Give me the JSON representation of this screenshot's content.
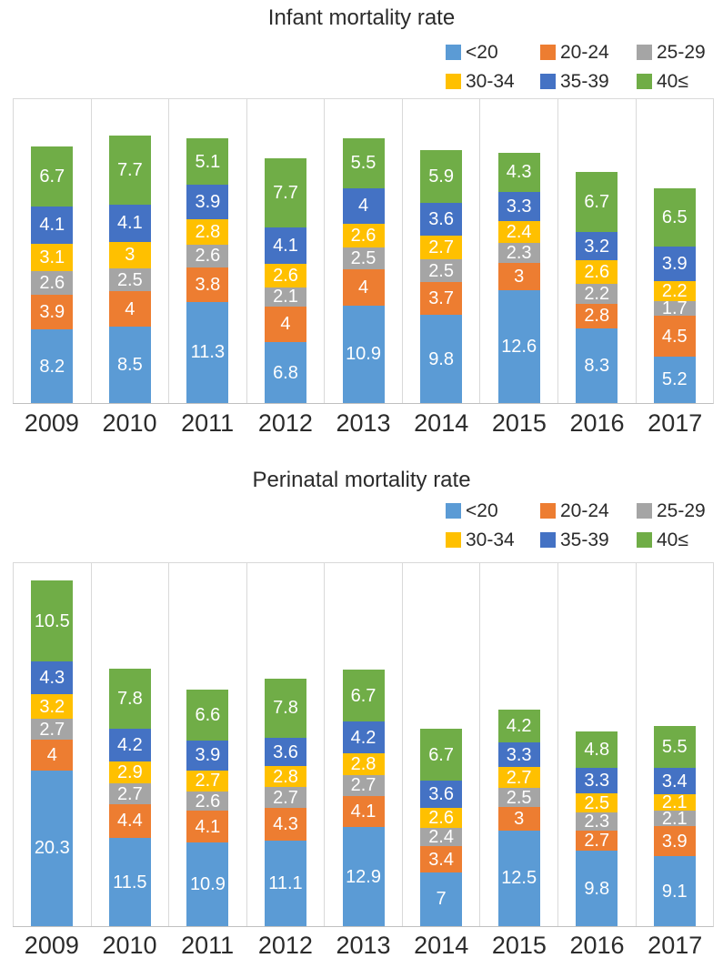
{
  "figure": {
    "background": "#ffffff",
    "text_color": "#2b2b2b",
    "gridline_color": "#d9d9d9",
    "axis_line_color": "#c0c0c0",
    "label_color_inside_bars": "#ffffff"
  },
  "chart_data": [
    {
      "type": "bar",
      "variant": "stacked-vertical",
      "title": "Infant mortality rate",
      "xlabel": "",
      "ylabel": "",
      "ylim": [
        0,
        33.9
      ],
      "grid": "vertical-category-separators",
      "legend_position": "top-right-two-rows",
      "categories": [
        "2009",
        "2010",
        "2011",
        "2012",
        "2013",
        "2014",
        "2015",
        "2016",
        "2017"
      ],
      "series": [
        {
          "name": "<20",
          "color": "#5B9BD5",
          "values": [
            8.2,
            8.5,
            11.3,
            6.8,
            10.9,
            9.8,
            12.6,
            8.3,
            5.2
          ]
        },
        {
          "name": "20-24",
          "color": "#ED7D31",
          "values": [
            3.9,
            4,
            3.8,
            4,
            4,
            3.7,
            3,
            2.8,
            4.5
          ]
        },
        {
          "name": "25-29",
          "color": "#A5A5A5",
          "values": [
            2.6,
            2.5,
            2.6,
            2.1,
            2.5,
            2.5,
            2.3,
            2.2,
            1.7
          ]
        },
        {
          "name": "30-34",
          "color": "#FFC000",
          "values": [
            3.1,
            3,
            2.8,
            2.6,
            2.6,
            2.7,
            2.4,
            2.6,
            2.2
          ]
        },
        {
          "name": "35-39",
          "color": "#4472C4",
          "values": [
            4.1,
            4.1,
            3.9,
            4.1,
            4,
            3.6,
            3.3,
            3.2,
            3.9
          ]
        },
        {
          "name": "40≤",
          "color": "#70AD47",
          "values": [
            6.7,
            7.7,
            5.1,
            7.7,
            5.5,
            5.9,
            4.3,
            6.7,
            6.5
          ]
        }
      ]
    },
    {
      "type": "bar",
      "variant": "stacked-vertical",
      "title": "Perinatal mortality rate",
      "xlabel": "",
      "ylabel": "",
      "ylim": [
        0,
        47.3
      ],
      "grid": "vertical-category-separators",
      "legend_position": "top-right-two-rows",
      "categories": [
        "2009",
        "2010",
        "2011",
        "2012",
        "2013",
        "2014",
        "2015",
        "2016",
        "2017"
      ],
      "series": [
        {
          "name": "<20",
          "color": "#5B9BD5",
          "values": [
            20.3,
            11.5,
            10.9,
            11.1,
            12.9,
            7,
            12.5,
            9.8,
            9.1
          ]
        },
        {
          "name": "20-24",
          "color": "#ED7D31",
          "values": [
            4,
            4.4,
            4.1,
            4.3,
            4.1,
            3.4,
            3,
            2.7,
            3.9
          ]
        },
        {
          "name": "25-29",
          "color": "#A5A5A5",
          "values": [
            2.7,
            2.7,
            2.6,
            2.7,
            2.7,
            2.4,
            2.5,
            2.3,
            2.1
          ]
        },
        {
          "name": "30-34",
          "color": "#FFC000",
          "values": [
            3.2,
            2.9,
            2.7,
            2.8,
            2.8,
            2.6,
            2.7,
            2.5,
            2.1
          ]
        },
        {
          "name": "35-39",
          "color": "#4472C4",
          "values": [
            4.3,
            4.2,
            3.9,
            3.6,
            4.2,
            3.6,
            3.3,
            3.3,
            3.4
          ]
        },
        {
          "name": "40≤",
          "color": "#70AD47",
          "values": [
            10.5,
            7.8,
            6.6,
            7.8,
            6.7,
            6.7,
            4.2,
            4.8,
            5.5
          ]
        }
      ]
    }
  ]
}
